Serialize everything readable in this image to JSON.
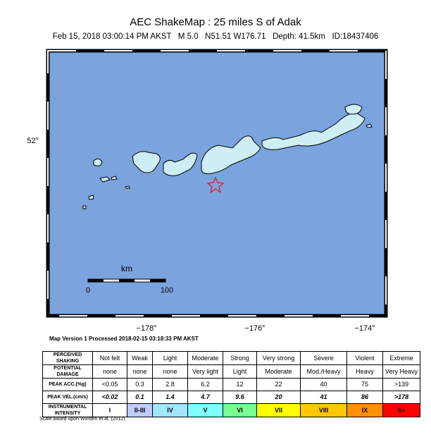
{
  "header": {
    "title": "AEC ShakeMap : 25 miles S of Adak",
    "subtitle": "Feb 15, 2018 03:00:14 PM AKST   M 5.0   N51.51 W176.71   Depth: 41.5km   ID:18437406"
  },
  "map": {
    "lat_labels": [
      "52°"
    ],
    "lon_labels": [
      "−178°",
      "−176°",
      "−174°"
    ],
    "scale": {
      "unit": "km",
      "labels": [
        "0",
        "100"
      ]
    }
  },
  "processed": "Map Version 1 Processed 2018-02-15 03:18:33 PM AKST",
  "table": {
    "rows": [
      {
        "label": "PERCEIVED SHAKING",
        "cells": [
          "Not felt",
          "Weak",
          "Light",
          "Moderate",
          "Strong",
          "Very strong",
          "Severe",
          "Violent",
          "Extreme"
        ]
      },
      {
        "label": "POTENTIAL DAMAGE",
        "cells": [
          "none",
          "none",
          "none",
          "Very light",
          "Light",
          "Moderate",
          "Mod./Heavy",
          "Heavy",
          "Very Heavy"
        ]
      },
      {
        "label": "PEAK ACC.(%g)",
        "cells": [
          "<0.05",
          "0.3",
          "2.8",
          "6.2",
          "12",
          "22",
          "40",
          "75",
          ">139"
        ]
      },
      {
        "label": "PEAK VEL.(cm/s)",
        "cells": [
          "<0.02",
          "0.1",
          "1.4",
          "4.7",
          "9.6",
          "20",
          "41",
          "86",
          ">178"
        ]
      },
      {
        "label": "INSTRUMENTAL INTENSITY",
        "cells": [
          "I",
          "II-III",
          "IV",
          "V",
          "VI",
          "VII",
          "VIII",
          "IX",
          "X+"
        ],
        "colors": [
          "#ffffff",
          "#bfccff",
          "#a0e6ff",
          "#80ffff",
          "#7aff93",
          "#ffff00",
          "#ffc800",
          "#ff9100",
          "#ff0000"
        ]
      }
    ]
  },
  "footnote": "Scale based upon Worden et al. (2012)"
}
